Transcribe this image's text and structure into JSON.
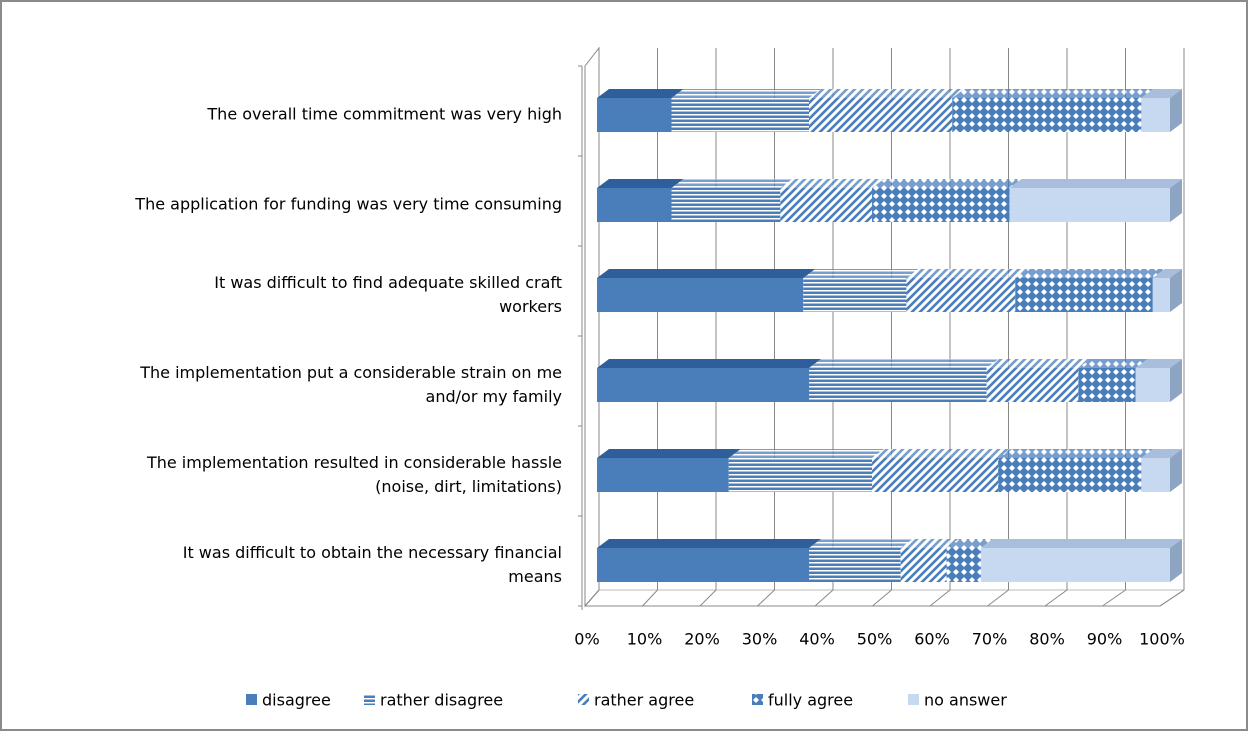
{
  "chart_data": {
    "type": "bar3d_stacked_horizontal",
    "categories": [
      "The overall time commitment was very high",
      "The application for funding was very time consuming",
      "It was difficult to find adequate skilled craft workers",
      "The implementation put a considerable strain on me and/or my family",
      "The implementation resulted in considerable hassle (noise, dirt, limitations)",
      "It was difficult to obtain the necessary financial means"
    ],
    "series": [
      {
        "name": "disagree",
        "color": "#4a7ebb",
        "pattern": "solid",
        "values": [
          13,
          13,
          36,
          37,
          23,
          37
        ]
      },
      {
        "name": "rather disagree",
        "color": "#4a7ebb",
        "pattern": "horizontal",
        "values": [
          24,
          19,
          18,
          31,
          25,
          16
        ]
      },
      {
        "name": "rather agree",
        "color": "#4a7ebb",
        "pattern": "diagonal",
        "values": [
          25,
          16,
          19,
          16,
          22,
          8
        ]
      },
      {
        "name": "fully agree",
        "color": "#4a7ebb",
        "pattern": "checker",
        "values": [
          33,
          24,
          24,
          10,
          25,
          6
        ]
      },
      {
        "name": "no answer",
        "color": "#c6d9f1",
        "pattern": "solid",
        "values": [
          5,
          28,
          3,
          6,
          5,
          33
        ]
      }
    ],
    "xlim": [
      0,
      100
    ],
    "xticks": [
      {
        "value": 0,
        "label": "0%"
      },
      {
        "value": 10,
        "label": "10%"
      },
      {
        "value": 20,
        "label": "20%"
      },
      {
        "value": 30,
        "label": "30%"
      },
      {
        "value": 40,
        "label": "40%"
      },
      {
        "value": 50,
        "label": "50%"
      },
      {
        "value": 60,
        "label": "60%"
      },
      {
        "value": 70,
        "label": "70%"
      },
      {
        "value": 80,
        "label": "80%"
      },
      {
        "value": 90,
        "label": "90%"
      },
      {
        "value": 100,
        "label": "100%"
      }
    ],
    "grid": true,
    "legend": "bottom"
  }
}
